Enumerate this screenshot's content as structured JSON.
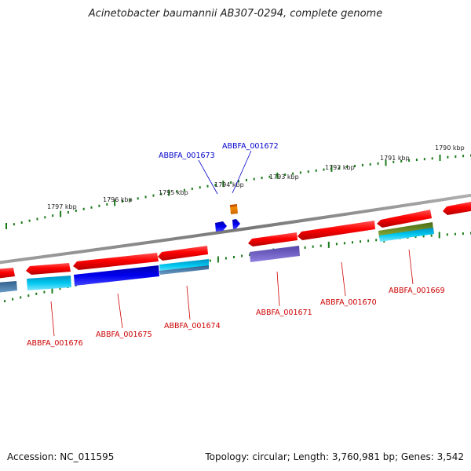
{
  "title": "Acinetobacter baumannii AB307-0294, complete genome",
  "footer": {
    "accession": "Accession: NC_011595",
    "summary": "Topology: circular; Length: 3,760,981 bp; Genes: 3,542"
  },
  "scale_labels": [
    "1797 kbp",
    "1796 kbp",
    "1795 kbp",
    "1794 kbp",
    "1793 kbp",
    "1792 kbp",
    "1791 kbp",
    "1790 kbp"
  ],
  "locus_labels": {
    "reverse_strand": [
      "ABBFA_001673",
      "ABBFA_001672"
    ],
    "forward_strand": [
      "ABBFA_001676",
      "ABBFA_001675",
      "ABBFA_001674",
      "ABBFA_001671",
      "ABBFA_001670",
      "ABBFA_001669"
    ]
  },
  "colors": {
    "forward_gene": "#ff0000",
    "reverse_label": "#0000cc",
    "forward_label": "#cc0000",
    "backbone": "#808080",
    "ticks": "#1a7a1a",
    "cyan_feature": "#00b8e6",
    "blue_feature": "#0000dd",
    "orange_feature": "#ff8800",
    "olive_feature": "#6b8e23",
    "slate_feature": "#4682b4",
    "purple_feature": "#6a5acd"
  }
}
